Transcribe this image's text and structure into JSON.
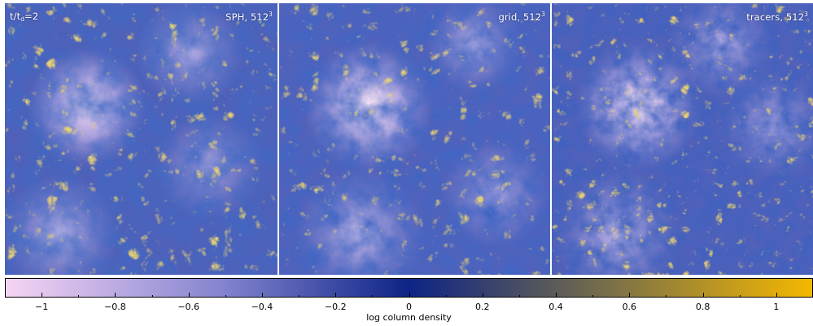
{
  "panels": [
    {
      "id": "sph",
      "time_label_base": "t/t",
      "time_label_sub": "d",
      "time_label_value": "=2",
      "title_base": "SPH, 512",
      "title_sup": "3"
    },
    {
      "id": "grid",
      "title_base": "grid, 512",
      "title_sup": "3"
    },
    {
      "id": "tracers",
      "title_base": "tracers, 512",
      "title_sup": "3"
    }
  ],
  "colorbar": {
    "title": "log column density",
    "min": -1.1,
    "max": 1.1,
    "tick_values": [
      -1,
      -0.8,
      -0.6,
      -0.4,
      -0.2,
      0,
      0.2,
      0.4,
      0.6,
      0.8,
      1
    ],
    "tick_labels": [
      "−1",
      "−0.8",
      "−0.6",
      "−0.4",
      "−0.2",
      "0",
      "0.2",
      "0.4",
      "0.6",
      "0.8",
      "1"
    ],
    "colors": {
      "low": "#f6d4f4",
      "mid_low": "#8383cf",
      "mid": "#0d2486",
      "mid_high": "#7a7048",
      "high": "#f5b800"
    }
  }
}
